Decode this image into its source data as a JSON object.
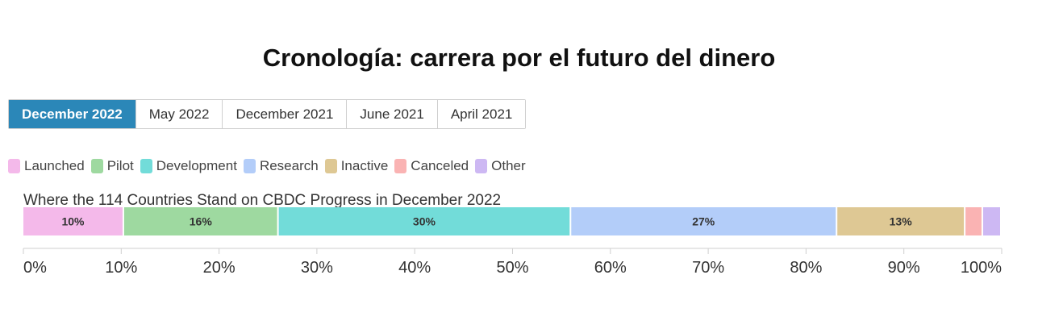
{
  "header": {
    "title": "Cronología: carrera por el futuro del dinero"
  },
  "tabs": [
    {
      "label": "December 2022",
      "active": true
    },
    {
      "label": "May 2022",
      "active": false
    },
    {
      "label": "December 2021",
      "active": false
    },
    {
      "label": "June 2021",
      "active": false
    },
    {
      "label": "April 2021",
      "active": false
    }
  ],
  "legend": [
    {
      "label": "Launched",
      "color": "#f4b9ea"
    },
    {
      "label": "Pilot",
      "color": "#9ed9a0"
    },
    {
      "label": "Development",
      "color": "#72dcd9"
    },
    {
      "label": "Research",
      "color": "#b3cdf9"
    },
    {
      "label": "Inactive",
      "color": "#dec894"
    },
    {
      "label": "Canceled",
      "color": "#fab3b3"
    },
    {
      "label": "Other",
      "color": "#cdb8f3"
    }
  ],
  "chart_data": {
    "type": "bar",
    "orientation": "horizontal-stacked",
    "title": "Where the 114 Countries Stand on CBDC Progress in December 2022",
    "categories": [
      ""
    ],
    "series": [
      {
        "name": "Launched",
        "values": [
          10.3
        ],
        "label": "10%",
        "color": "#f4b9ea"
      },
      {
        "name": "Pilot",
        "values": [
          15.8
        ],
        "label": "16%",
        "color": "#9ed9a0"
      },
      {
        "name": "Development",
        "values": [
          29.9
        ],
        "label": "30%",
        "color": "#72dcd9"
      },
      {
        "name": "Research",
        "values": [
          27.2
        ],
        "label": "27%",
        "color": "#b3cdf9"
      },
      {
        "name": "Inactive",
        "values": [
          13.1
        ],
        "label": "13%",
        "color": "#dec894"
      },
      {
        "name": "Canceled",
        "values": [
          1.8
        ],
        "label": "",
        "color": "#fab3b3"
      },
      {
        "name": "Other",
        "values": [
          1.9
        ],
        "label": "",
        "color": "#cdb8f3"
      }
    ],
    "xlim": [
      0,
      100
    ],
    "xticks": [
      "0%",
      "10%",
      "20%",
      "30%",
      "40%",
      "50%",
      "60%",
      "70%",
      "80%",
      "90%",
      "100%"
    ],
    "grid": false,
    "legend_position": "top-left"
  }
}
